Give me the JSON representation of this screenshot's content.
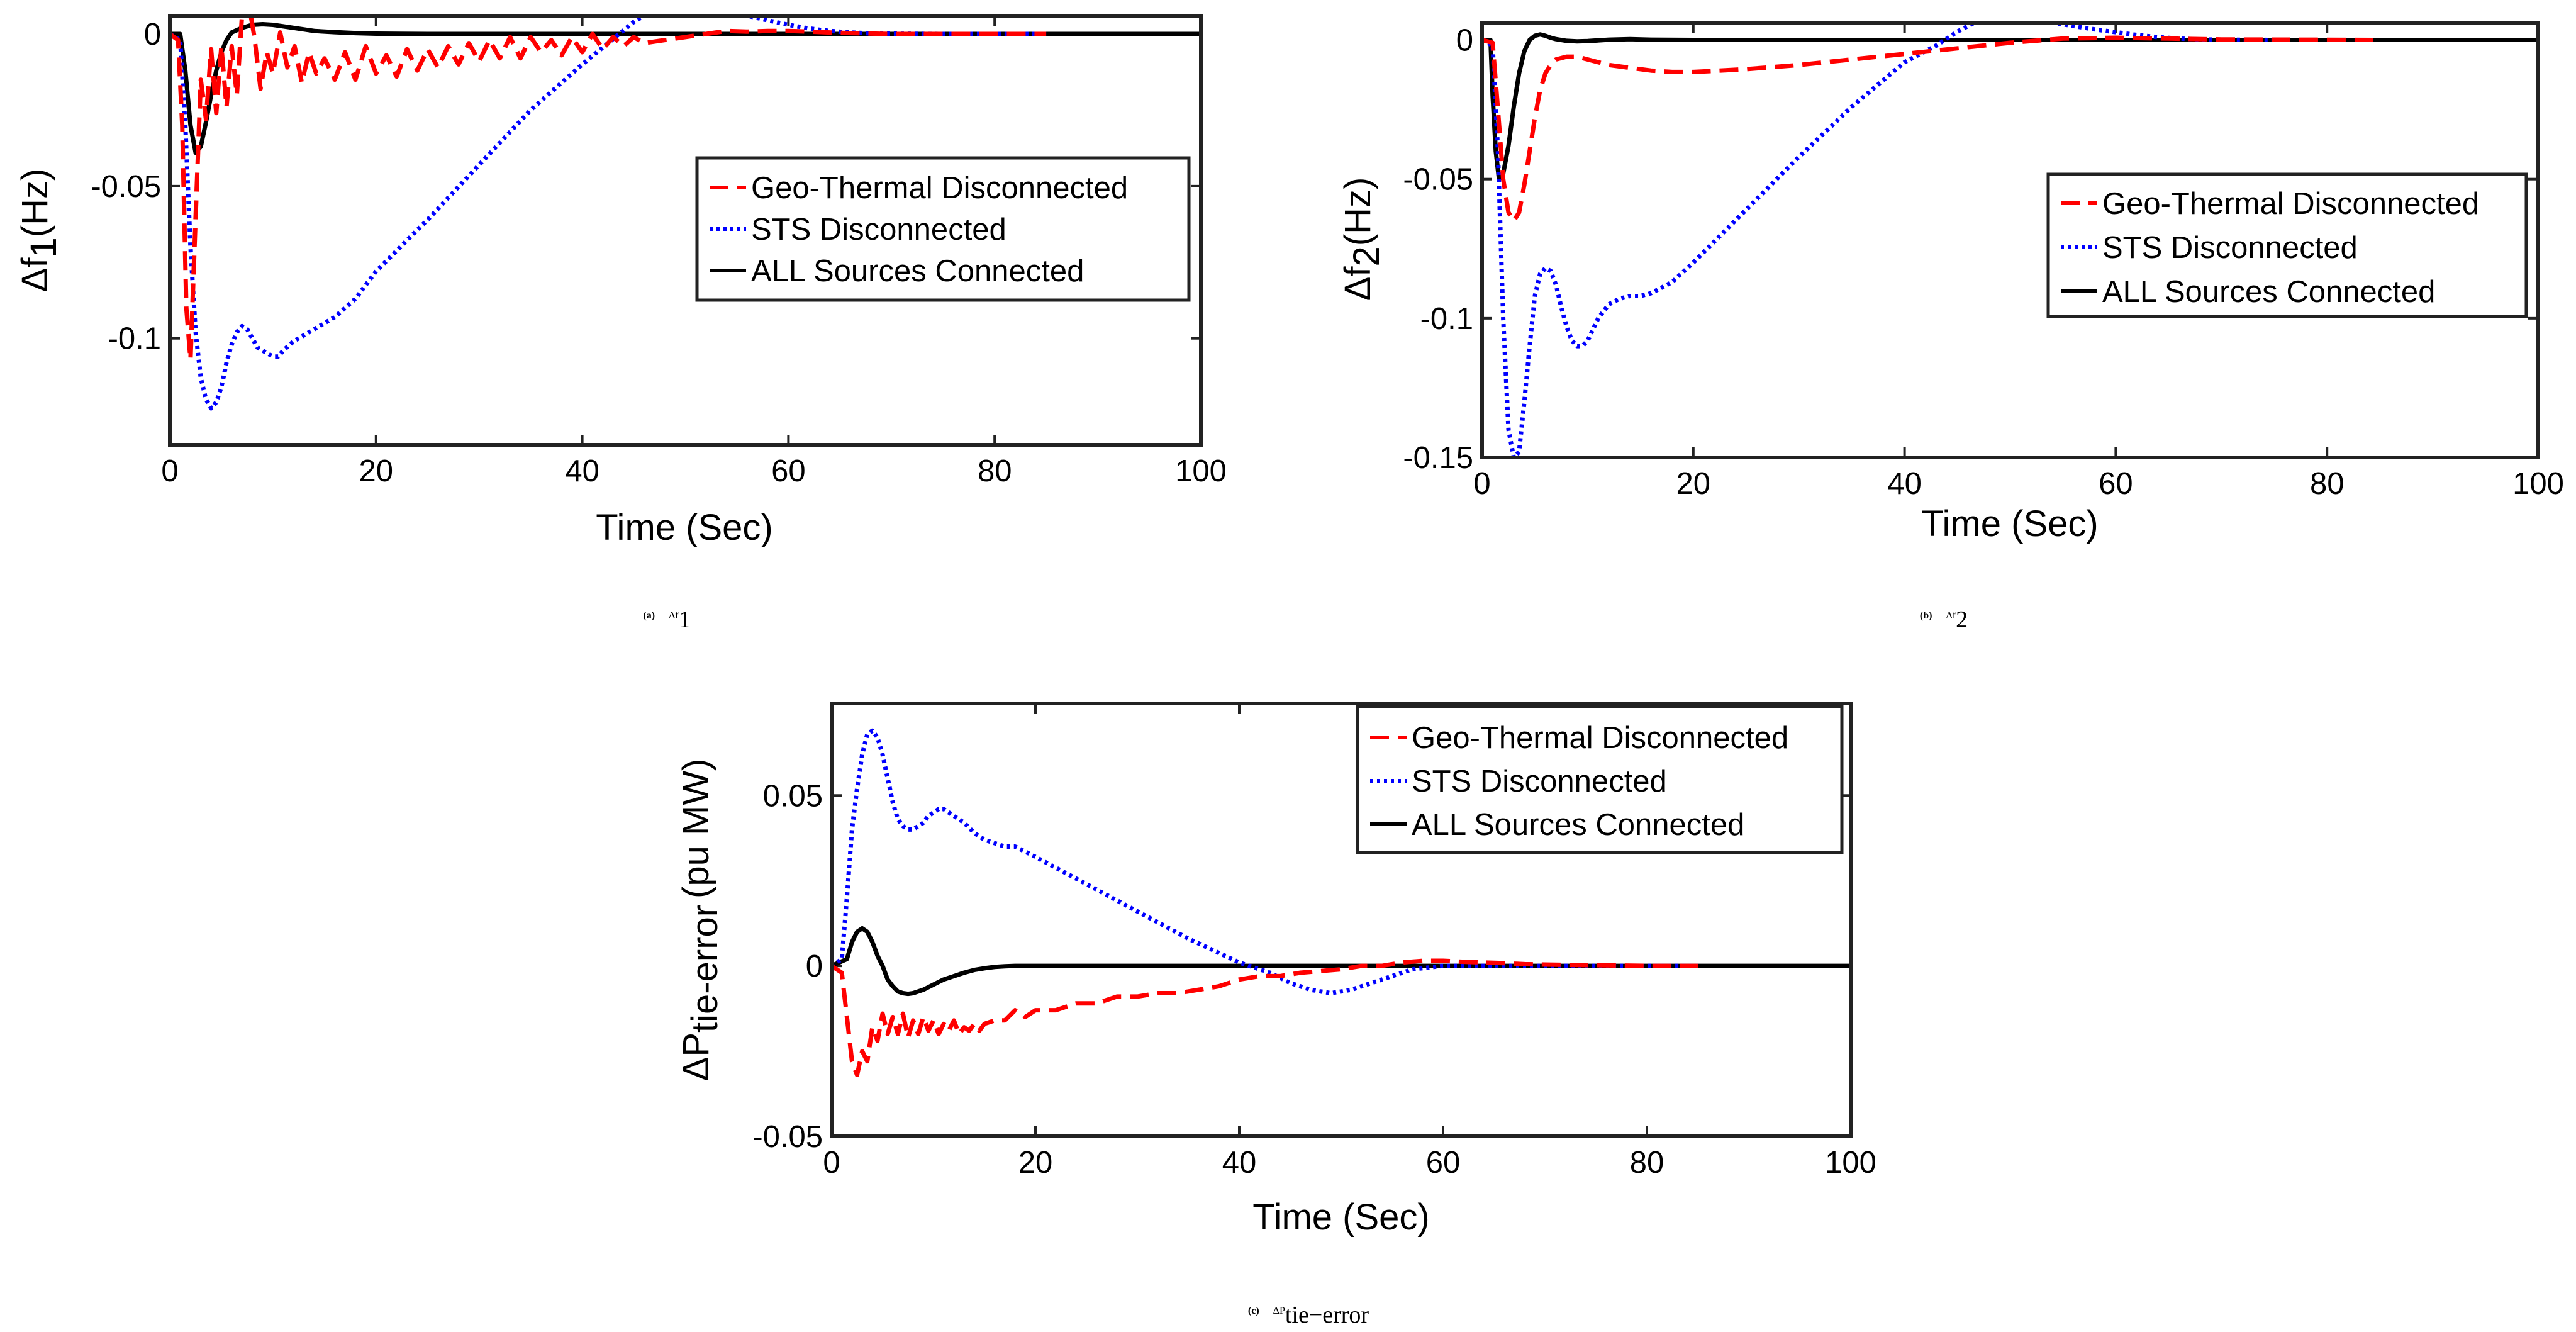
{
  "chart_data": [
    {
      "type": "line",
      "caption_label": "(a)",
      "caption_symbol": "Δf",
      "caption_sub": "1",
      "xlabel": "Time (Sec)",
      "ylabel": "Δf",
      "ylabel_sub": "1",
      "ylabel_unit": "(Hz)",
      "xlim": [
        0,
        100
      ],
      "ylim": [
        -0.135,
        0.006
      ],
      "xticks": [
        0,
        20,
        40,
        60,
        80,
        100
      ],
      "xtick_labels": [
        "0",
        "20",
        "40",
        "60",
        "80",
        "100"
      ],
      "yticks": [
        0,
        -0.05,
        -0.1
      ],
      "ytick_labels": [
        "0",
        "-0.05",
        "-0.1"
      ],
      "grid": false,
      "legend_position": "right",
      "series": [
        {
          "name": "Geo-Thermal Disconnected",
          "color": "#ff0000",
          "style": "dashed",
          "x": [
            0,
            0.8,
            1.2,
            1.6,
            2.0,
            2.5,
            3.0,
            3.5,
            4.0,
            4.5,
            5.0,
            5.5,
            6.0,
            6.5,
            7.0,
            7.6,
            8.2,
            8.8,
            9.4,
            10,
            10.7,
            11.4,
            12.1,
            12.8,
            13.5,
            14.2,
            15,
            16,
            17,
            18,
            19,
            20,
            21,
            22,
            23,
            24,
            25,
            26,
            27,
            28,
            29,
            30,
            31,
            32,
            33,
            34,
            35,
            36,
            37,
            38,
            39,
            40,
            41,
            42,
            43,
            44,
            45,
            46,
            48,
            50,
            52,
            54,
            56,
            58,
            60,
            62,
            64,
            66,
            70,
            80,
            85
          ],
          "y": [
            0,
            -0.002,
            -0.03,
            -0.09,
            -0.107,
            -0.06,
            -0.015,
            -0.028,
            -0.005,
            -0.026,
            -0.004,
            -0.024,
            -0.004,
            -0.02,
            0.006,
            0.011,
            -0.001,
            -0.018,
            -0.006,
            -0.013,
            0.0005,
            -0.011,
            -0.004,
            -0.016,
            -0.006,
            -0.013,
            -0.008,
            -0.015,
            -0.006,
            -0.015,
            -0.004,
            -0.013,
            -0.007,
            -0.014,
            -0.005,
            -0.012,
            -0.005,
            -0.011,
            -0.004,
            -0.01,
            -0.003,
            -0.009,
            -0.002,
            -0.008,
            -0.001,
            -0.008,
            -0.001,
            -0.006,
            -0.002,
            -0.007,
            -0.001,
            -0.006,
            0.0,
            -0.005,
            -0.001,
            -0.004,
            -0.001,
            -0.003,
            -0.002,
            -0.001,
            0.0,
            0.001,
            0.0008,
            0.001,
            0.001,
            0.0008,
            0.0005,
            0.0003,
            0.0,
            0.0,
            0.0
          ]
        },
        {
          "name": "STS Disconnected",
          "color": "#0000ff",
          "style": "dotted",
          "x": [
            0,
            1.0,
            1.5,
            2.0,
            2.5,
            3.0,
            3.5,
            4.0,
            4.5,
            5.0,
            5.5,
            6.0,
            6.5,
            7.0,
            7.5,
            8.0,
            8.5,
            9.0,
            9.5,
            10,
            10.5,
            11,
            12,
            13,
            14,
            15,
            16,
            18,
            20,
            25,
            30,
            35,
            40,
            45,
            47,
            49,
            50,
            51,
            52,
            54,
            56,
            58,
            60,
            62,
            64,
            66,
            68,
            70,
            75,
            80,
            85
          ],
          "y": [
            0,
            -0.002,
            -0.03,
            -0.07,
            -0.098,
            -0.113,
            -0.12,
            -0.123,
            -0.121,
            -0.116,
            -0.108,
            -0.102,
            -0.098,
            -0.096,
            -0.097,
            -0.1,
            -0.103,
            -0.104,
            -0.105,
            -0.106,
            -0.106,
            -0.104,
            -0.101,
            -0.099,
            -0.097,
            -0.095,
            -0.093,
            -0.087,
            -0.078,
            -0.061,
            -0.043,
            -0.025,
            -0.01,
            0.004,
            0.008,
            0.01,
            0.0105,
            0.0102,
            0.0095,
            0.008,
            0.006,
            0.0045,
            0.003,
            0.0018,
            0.001,
            0.0005,
            0.0002,
            0.0001,
            0.0,
            0.0,
            0.0
          ]
        },
        {
          "name": "ALL Sources Connected",
          "color": "#000000",
          "style": "solid",
          "x": [
            0,
            1.0,
            1.5,
            2.0,
            2.5,
            3.0,
            3.5,
            4.0,
            4.5,
            5.0,
            5.5,
            6.0,
            7.0,
            8.0,
            9.0,
            10,
            11,
            12,
            14,
            16,
            18,
            20,
            25,
            30,
            100
          ],
          "y": [
            0,
            0,
            -0.012,
            -0.03,
            -0.039,
            -0.037,
            -0.029,
            -0.02,
            -0.012,
            -0.006,
            -0.002,
            0.0005,
            0.002,
            0.003,
            0.0032,
            0.003,
            0.0025,
            0.002,
            0.001,
            0.0006,
            0.0003,
            0.0001,
            0.0,
            0.0,
            0.0
          ]
        }
      ]
    },
    {
      "type": "line",
      "caption_label": "(b)",
      "caption_symbol": "Δf",
      "caption_sub": "2",
      "xlabel": "Time (Sec)",
      "ylabel": "Δf",
      "ylabel_sub": "2",
      "ylabel_unit": "(Hz)",
      "xlim": [
        0,
        100
      ],
      "ylim": [
        -0.15,
        0.006
      ],
      "xticks": [
        0,
        20,
        40,
        60,
        80,
        100
      ],
      "xtick_labels": [
        "0",
        "20",
        "40",
        "60",
        "80",
        "100"
      ],
      "yticks": [
        0,
        -0.05,
        -0.1,
        -0.15
      ],
      "ytick_labels": [
        "0",
        "-0.05",
        "-0.1",
        "-0.15"
      ],
      "grid": false,
      "legend_position": "right",
      "series": [
        {
          "name": "Geo-Thermal Disconnected",
          "color": "#ff0000",
          "style": "dashed",
          "x": [
            0,
            1.0,
            1.5,
            2.0,
            2.5,
            3.0,
            3.5,
            4.0,
            4.5,
            5.0,
            5.5,
            6.0,
            6.5,
            7.0,
            8.0,
            9.0,
            10,
            12,
            14,
            16,
            18,
            20,
            25,
            30,
            35,
            40,
            45,
            50,
            55,
            60,
            65,
            70,
            85
          ],
          "y": [
            0,
            -0.001,
            -0.025,
            -0.05,
            -0.062,
            -0.065,
            -0.062,
            -0.052,
            -0.04,
            -0.028,
            -0.018,
            -0.012,
            -0.009,
            -0.007,
            -0.006,
            -0.006,
            -0.007,
            -0.009,
            -0.01,
            -0.011,
            -0.0115,
            -0.0115,
            -0.0105,
            -0.009,
            -0.007,
            -0.005,
            -0.003,
            -0.001,
            0.0005,
            0.0008,
            0.0005,
            0.0002,
            0.0
          ]
        },
        {
          "name": "STS Disconnected",
          "color": "#0000ff",
          "style": "dotted",
          "x": [
            0,
            1.0,
            1.5,
            2.0,
            2.5,
            3.0,
            3.5,
            4.0,
            4.5,
            5.0,
            5.5,
            6.0,
            6.5,
            7.0,
            7.5,
            8.0,
            8.5,
            9.0,
            9.5,
            10,
            10.5,
            11,
            12,
            13,
            14,
            15,
            16,
            17,
            18,
            20,
            25,
            30,
            35,
            40,
            43,
            45,
            47,
            48.5,
            50,
            52,
            54,
            56,
            58,
            60,
            62,
            64,
            66,
            68,
            70,
            75
          ],
          "y": [
            0,
            -0.002,
            -0.04,
            -0.1,
            -0.14,
            -0.15,
            -0.148,
            -0.13,
            -0.11,
            -0.092,
            -0.084,
            -0.082,
            -0.083,
            -0.088,
            -0.096,
            -0.103,
            -0.108,
            -0.11,
            -0.11,
            -0.108,
            -0.104,
            -0.1,
            -0.095,
            -0.093,
            -0.092,
            -0.092,
            -0.091,
            -0.089,
            -0.087,
            -0.08,
            -0.061,
            -0.042,
            -0.024,
            -0.008,
            -0.002,
            0.003,
            0.007,
            0.0085,
            0.0085,
            0.0075,
            0.0062,
            0.005,
            0.0038,
            0.0028,
            0.0018,
            0.001,
            0.0005,
            0.0002,
            0.0001,
            0.0
          ]
        },
        {
          "name": "ALL Sources Connected",
          "color": "#000000",
          "style": "solid",
          "x": [
            0,
            0.8,
            1.0,
            1.3,
            1.6,
            2.0,
            2.5,
            3.0,
            3.5,
            4.0,
            4.5,
            5.0,
            5.5,
            6.0,
            6.5,
            7.0,
            8.0,
            9.0,
            10,
            12,
            14,
            16,
            20,
            100
          ],
          "y": [
            0,
            0,
            -0.02,
            -0.04,
            -0.05,
            -0.048,
            -0.038,
            -0.024,
            -0.012,
            -0.004,
            0.0,
            0.0015,
            0.002,
            0.0015,
            0.0008,
            0.0003,
            -0.0003,
            -0.0005,
            -0.0004,
            0.0001,
            0.0003,
            0.0001,
            0.0,
            0.0
          ]
        }
      ]
    },
    {
      "type": "line",
      "caption_label": "(c)",
      "caption_symbol": "ΔP",
      "caption_sub": "tie−error",
      "xlabel": "Time (Sec)",
      "ylabel": "ΔP",
      "ylabel_sub": "tie-error",
      "ylabel_unit": "(pu MW)",
      "xlim": [
        0,
        100
      ],
      "ylim": [
        -0.05,
        0.077
      ],
      "xticks": [
        0,
        20,
        40,
        60,
        80,
        100
      ],
      "xtick_labels": [
        "0",
        "20",
        "40",
        "60",
        "80",
        "100"
      ],
      "yticks": [
        0.05,
        0,
        -0.05
      ],
      "ytick_labels": [
        "0.05",
        "0",
        "-0.05"
      ],
      "grid": false,
      "legend_position": "top-right",
      "series": [
        {
          "name": "Geo-Thermal Disconnected",
          "color": "#ff0000",
          "style": "dashed",
          "x": [
            0,
            1.0,
            1.5,
            2.0,
            2.5,
            3.0,
            3.5,
            4.0,
            4.5,
            5.0,
            5.5,
            6.0,
            6.5,
            7.0,
            7.5,
            8.0,
            8.5,
            9.0,
            9.5,
            10,
            10.5,
            11,
            11.5,
            12,
            12.5,
            13,
            13.5,
            14,
            14.5,
            15,
            16,
            17,
            18,
            19,
            20,
            22,
            24,
            26,
            28,
            30,
            32,
            34,
            36,
            38,
            40,
            42,
            44,
            46,
            48,
            50,
            52,
            54,
            56,
            58,
            60,
            62,
            64,
            66,
            68,
            70,
            72,
            75,
            80,
            85
          ],
          "y": [
            0,
            -0.002,
            -0.015,
            -0.028,
            -0.032,
            -0.025,
            -0.028,
            -0.018,
            -0.022,
            -0.014,
            -0.02,
            -0.015,
            -0.02,
            -0.014,
            -0.021,
            -0.016,
            -0.02,
            -0.015,
            -0.019,
            -0.016,
            -0.02,
            -0.017,
            -0.019,
            -0.016,
            -0.02,
            -0.018,
            -0.019,
            -0.017,
            -0.019,
            -0.017,
            -0.016,
            -0.016,
            -0.013,
            -0.015,
            -0.013,
            -0.013,
            -0.011,
            -0.011,
            -0.009,
            -0.009,
            -0.008,
            -0.008,
            -0.007,
            -0.006,
            -0.004,
            -0.003,
            -0.003,
            -0.002,
            -0.0015,
            -0.001,
            0.0,
            0.0,
            0.001,
            0.0015,
            0.0015,
            0.0012,
            0.001,
            0.0008,
            0.0005,
            0.0004,
            0.0003,
            0.0002,
            0.0,
            0.0
          ]
        },
        {
          "name": "STS Disconnected",
          "color": "#0000ff",
          "style": "dotted",
          "x": [
            0,
            1.0,
            1.5,
            2.0,
            2.5,
            3.0,
            3.5,
            4.0,
            4.5,
            5.0,
            5.5,
            6.0,
            6.5,
            7.0,
            7.5,
            8.0,
            8.5,
            9.0,
            9.5,
            10,
            10.5,
            11,
            11.5,
            12,
            13,
            14,
            15,
            16,
            17,
            18,
            20,
            25,
            30,
            35,
            40,
            43,
            45,
            47,
            49,
            51,
            53,
            55,
            57,
            60,
            70,
            80,
            85
          ],
          "y": [
            0,
            0.002,
            0.02,
            0.04,
            0.052,
            0.062,
            0.068,
            0.069,
            0.067,
            0.062,
            0.055,
            0.048,
            0.043,
            0.041,
            0.04,
            0.04,
            0.041,
            0.042,
            0.044,
            0.045,
            0.046,
            0.046,
            0.045,
            0.044,
            0.042,
            0.039,
            0.037,
            0.036,
            0.035,
            0.035,
            0.032,
            0.024,
            0.016,
            0.008,
            0.001,
            -0.002,
            -0.005,
            -0.007,
            -0.008,
            -0.007,
            -0.005,
            -0.003,
            -0.001,
            0.0,
            0.0,
            0.0,
            0.0
          ]
        },
        {
          "name": "ALL Sources Connected",
          "color": "#000000",
          "style": "solid",
          "x": [
            0,
            1.5,
            2.0,
            2.5,
            3.0,
            3.5,
            4.0,
            4.5,
            5.0,
            5.5,
            6.0,
            6.5,
            7.0,
            7.5,
            8.0,
            9.0,
            10,
            11,
            12,
            13,
            14,
            15,
            16,
            17,
            18,
            20,
            25,
            30,
            100
          ],
          "y": [
            0,
            0.002,
            0.007,
            0.01,
            0.011,
            0.01,
            0.007,
            0.003,
            0.0,
            -0.004,
            -0.006,
            -0.0075,
            -0.008,
            -0.0082,
            -0.008,
            -0.007,
            -0.0055,
            -0.004,
            -0.003,
            -0.002,
            -0.0012,
            -0.0007,
            -0.0003,
            -0.0001,
            0.0,
            0.0,
            0.0,
            0.0,
            0.0
          ]
        }
      ]
    }
  ]
}
